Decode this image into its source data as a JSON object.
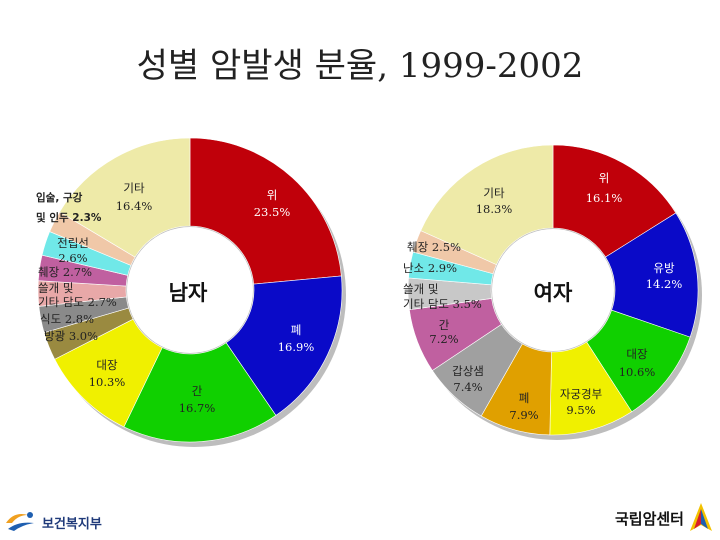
{
  "title": "성별 암발생 분율, 1999-2002",
  "chart_data": [
    {
      "type": "pie",
      "center_label": "남자",
      "slices": [
        {
          "label": "위",
          "value": 23.5,
          "color": "#c0000a"
        },
        {
          "label": "폐",
          "value": 16.9,
          "color": "#0a0ac8"
        },
        {
          "label": "간",
          "value": 16.7,
          "color": "#10d000"
        },
        {
          "label": "대장",
          "value": 10.3,
          "color": "#f0f000"
        },
        {
          "label": "방광",
          "value": 3.0,
          "color": "#9a8a40"
        },
        {
          "label": "식도",
          "value": 2.8,
          "color": "#8a8a8a"
        },
        {
          "label": "췌장",
          "value": 2.7,
          "color": "#e8a8a8"
        },
        {
          "label": "쓸개 및 기타 담도",
          "value": 2.7,
          "color": "#c060a0"
        },
        {
          "label": "전립선",
          "value": 2.6,
          "color": "#70e8e8"
        },
        {
          "label": "입술, 구강 및 인두",
          "value": 2.3,
          "color": "#f0c8a8"
        },
        {
          "label": "기타",
          "value": 16.4,
          "color": "#eeeaa8"
        }
      ],
      "texts": {
        "stomach": "위",
        "stomach_pct": "23.5%",
        "lung": "폐",
        "lung_pct": "16.9%",
        "liver": "간",
        "liver_pct": "16.7%",
        "colon": "대장",
        "colon_pct": "10.3%",
        "bladder": "방광 3.0%",
        "esoph": "식도 2.8%",
        "gb1": "쓸개 및",
        "gb2": "기타 담도 2.7%",
        "pancreas": "췌장 2.7%",
        "prostate1": "전립선",
        "prostate2": "2.6%",
        "lip1": "입술, 구강",
        "lip2": "및 인두 2.3%",
        "other": "기타",
        "other_pct": "16.4%"
      }
    },
    {
      "type": "pie",
      "center_label": "여자",
      "slices": [
        {
          "label": "위",
          "value": 16.1,
          "color": "#c0000a"
        },
        {
          "label": "유방",
          "value": 14.2,
          "color": "#0a0ac8"
        },
        {
          "label": "대장",
          "value": 10.6,
          "color": "#10d000"
        },
        {
          "label": "자궁경부",
          "value": 9.5,
          "color": "#f0f000"
        },
        {
          "label": "폐",
          "value": 7.9,
          "color": "#e0a000"
        },
        {
          "label": "갑상샘",
          "value": 7.4,
          "color": "#a0a0a0"
        },
        {
          "label": "간",
          "value": 7.2,
          "color": "#c060a0"
        },
        {
          "label": "쓸개 및 기타 담도",
          "value": 3.5,
          "color": "#c8c8c8"
        },
        {
          "label": "난소",
          "value": 2.9,
          "color": "#70e8e8"
        },
        {
          "label": "췌장",
          "value": 2.5,
          "color": "#f0c8a8"
        },
        {
          "label": "기타",
          "value": 18.3,
          "color": "#eeeaa8"
        }
      ],
      "texts": {
        "stomach": "위",
        "stomach_pct": "16.1%",
        "breast": "유방",
        "breast_pct": "14.2%",
        "colon": "대장",
        "colon_pct": "10.6%",
        "cervix": "자궁경부",
        "cervix_pct": "9.5%",
        "lung": "폐",
        "lung_pct": "7.9%",
        "thyroid": "갑상샘",
        "thyroid_pct": "7.4%",
        "liver": "간",
        "liver_pct": "7.2%",
        "gb1": "쓸개 및",
        "gb2": "기타 담도 3.5%",
        "ovary": "난소 2.9%",
        "pancreas": "췌장 2.5%",
        "other": "기타",
        "other_pct": "18.3%"
      }
    }
  ],
  "logos": {
    "left": "보건복지부",
    "right": "국립암센터"
  }
}
